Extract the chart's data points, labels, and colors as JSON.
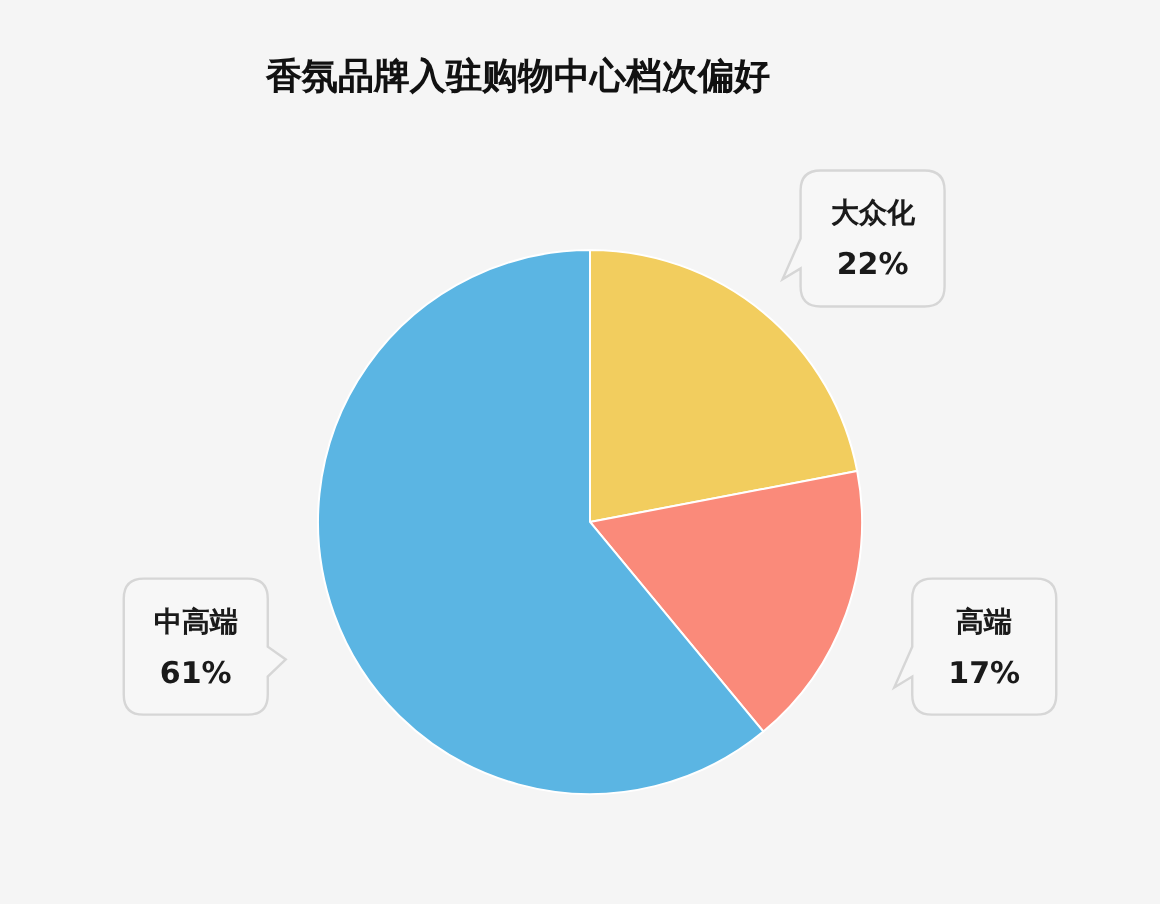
{
  "chart_data": {
    "type": "pie",
    "title": "香氛品牌入驻购物中心档次偏好",
    "categories": [
      "大众化",
      "高端",
      "中高端"
    ],
    "values": [
      22,
      17,
      61
    ],
    "value_labels": [
      "22%",
      "17%",
      "61%"
    ],
    "colors": [
      "#f2cd5e",
      "#fa8a7a",
      "#5bb5e3"
    ]
  }
}
